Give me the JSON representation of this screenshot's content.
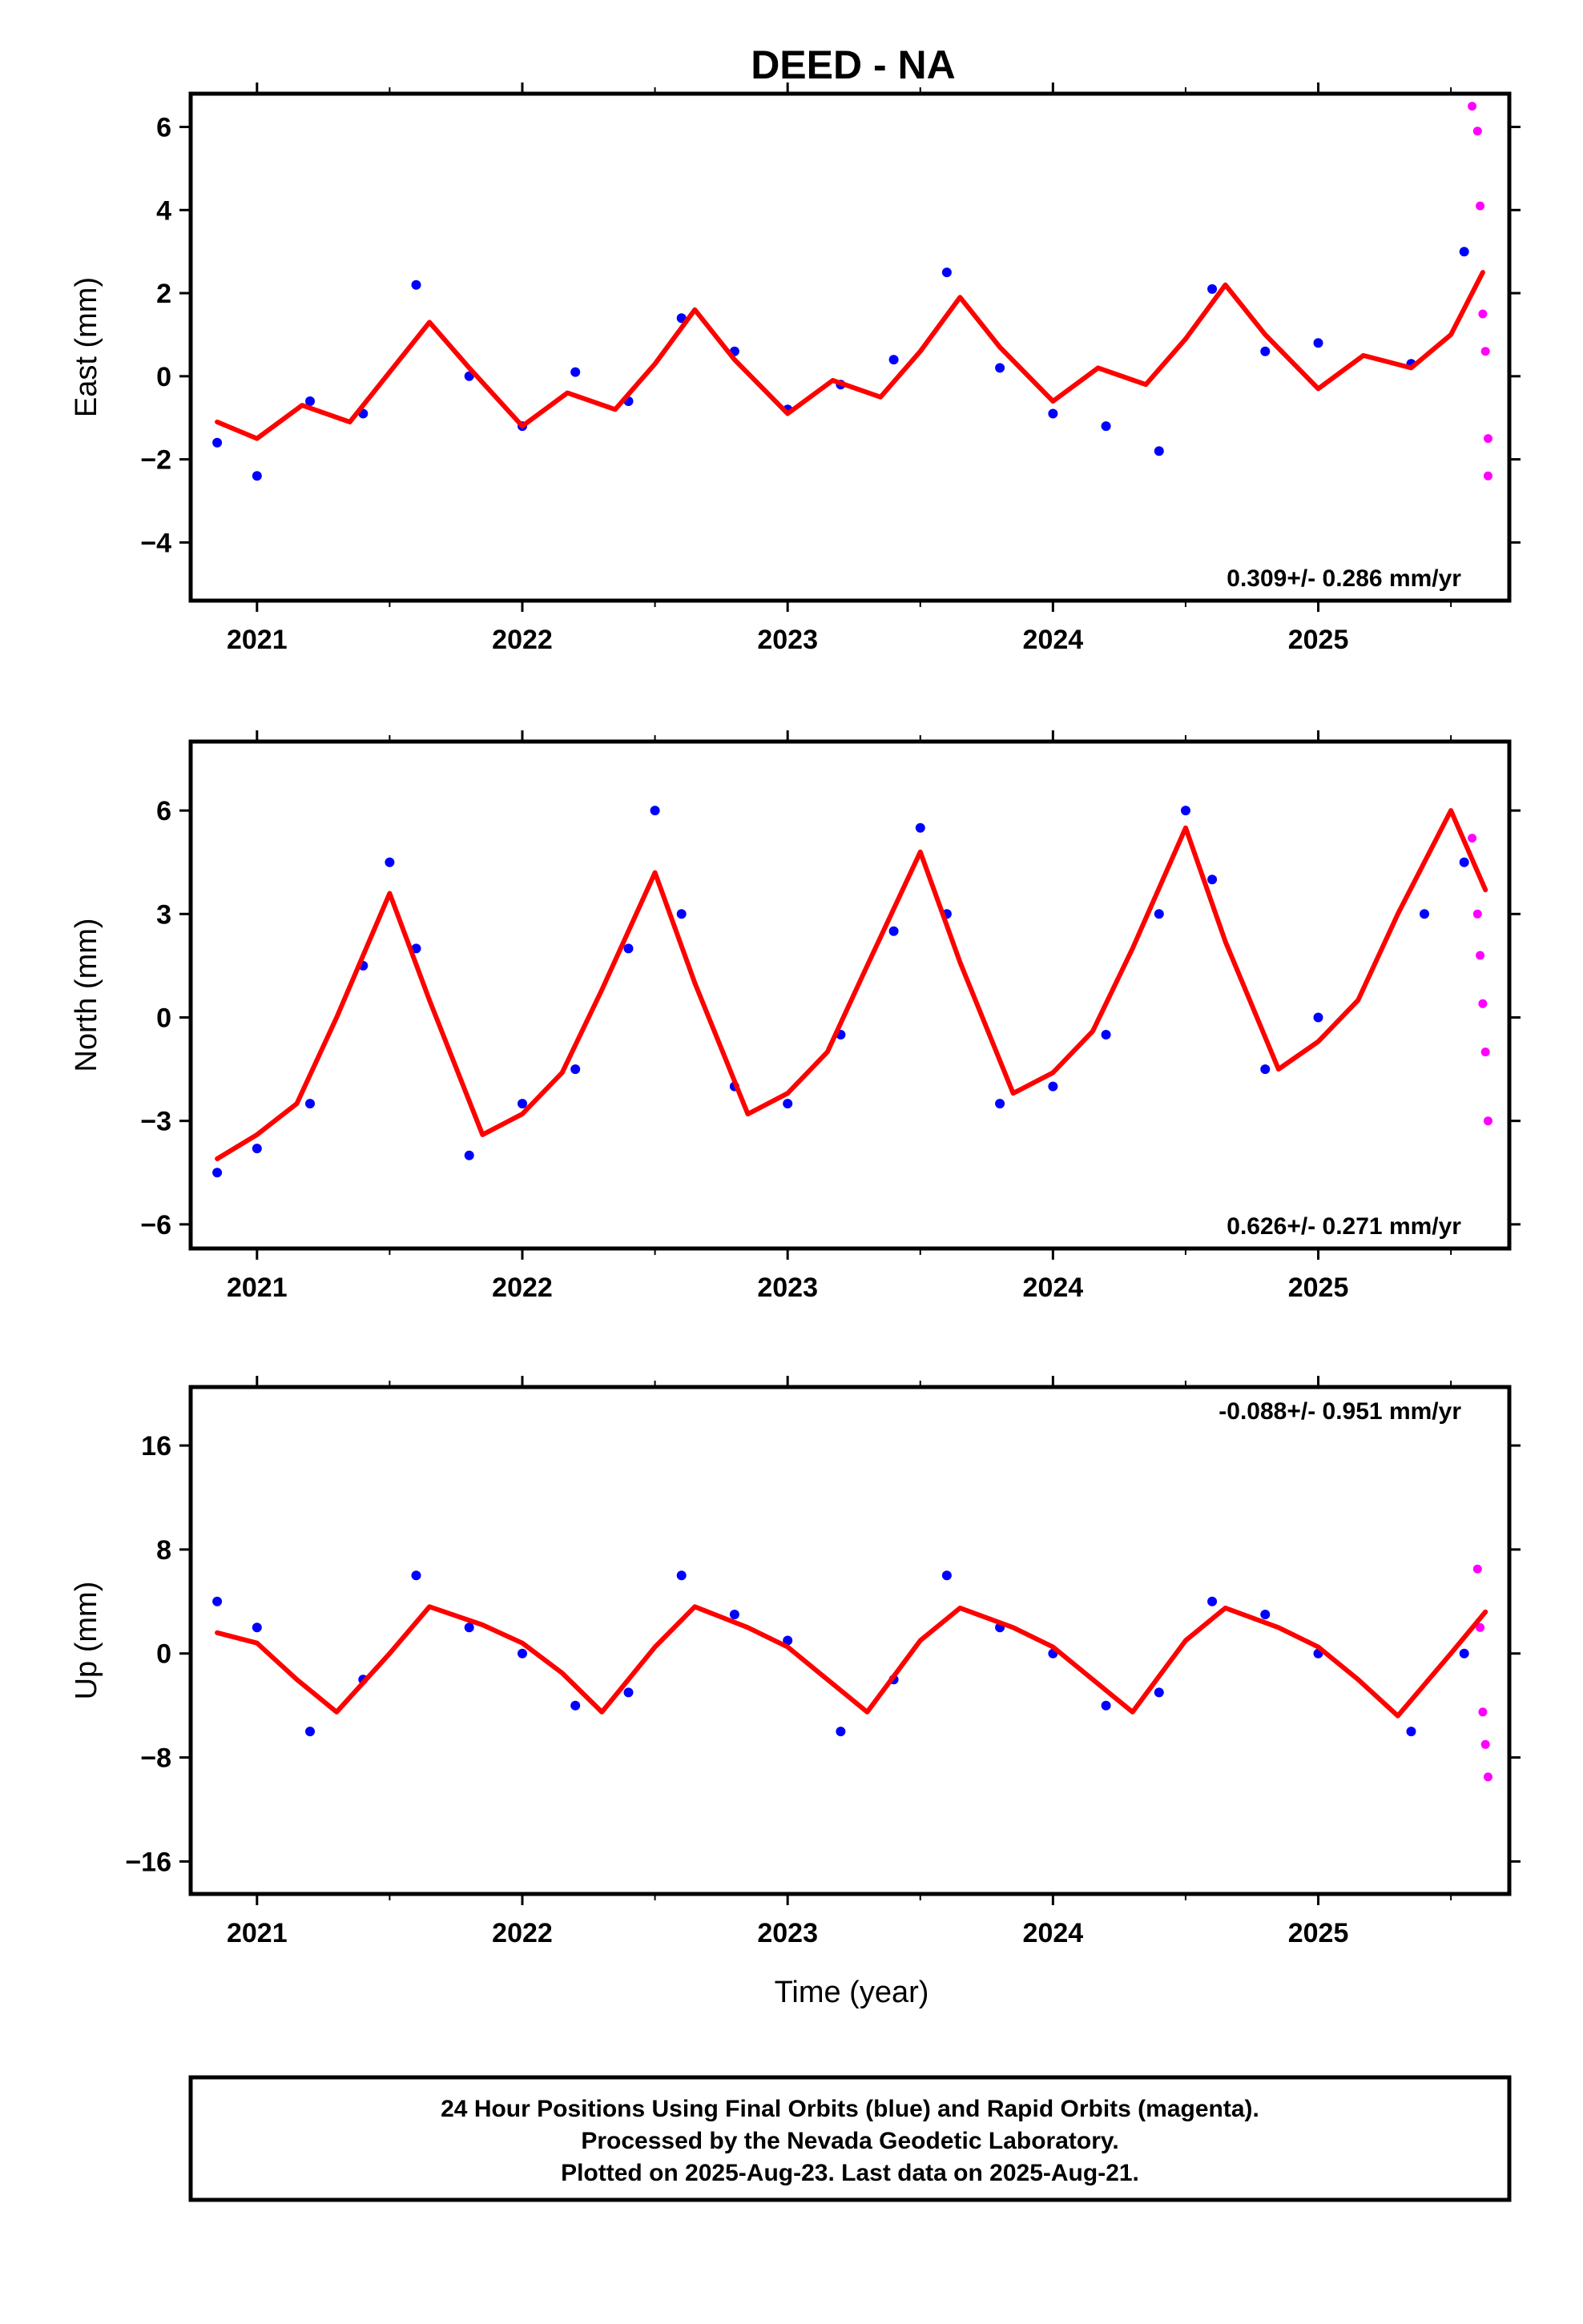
{
  "title": "DEED - NA",
  "xlabel": "Time (year)",
  "footer": {
    "line1": "24 Hour Positions Using Final Orbits (blue) and Rapid Orbits (magenta).",
    "line2": "Processed by the Nevada Geodetic Laboratory.",
    "line3": "Plotted on 2025-Aug-23. Last data on 2025-Aug-21."
  },
  "colors": {
    "final": "#0000ff",
    "rapid": "#ff00ff",
    "model": "#ff0000",
    "frame": "#000000"
  },
  "chart_data": [
    {
      "type": "scatter",
      "ylabel": "East (mm)",
      "rate": "0.309+/- 0.286 mm/yr",
      "xlim": [
        2020.75,
        2025.72
      ],
      "ylim": [
        -5.4,
        6.8
      ],
      "xticks": [
        2021,
        2022,
        2023,
        2024,
        2025
      ],
      "yticks": [
        -4,
        -2,
        0,
        2,
        4,
        6
      ],
      "grid": false,
      "series": [
        {
          "role": "final",
          "x": [
            2020.85,
            2021.0,
            2021.2,
            2021.4,
            2021.6,
            2021.8,
            2022.0,
            2022.2,
            2022.4,
            2022.6,
            2022.8,
            2023.0,
            2023.2,
            2023.4,
            2023.6,
            2023.8,
            2024.0,
            2024.2,
            2024.4,
            2024.6,
            2024.8,
            2025.0,
            2025.35,
            2025.55
          ],
          "y": [
            -1.6,
            -2.4,
            -0.6,
            -0.9,
            2.2,
            0.0,
            -1.2,
            0.1,
            -0.6,
            1.4,
            0.6,
            -0.8,
            -0.2,
            0.4,
            2.5,
            0.2,
            -0.9,
            -1.2,
            -1.8,
            2.1,
            0.6,
            0.8,
            0.3,
            3.0
          ]
        },
        {
          "role": "rapid",
          "x": [
            2025.58,
            2025.6,
            2025.61,
            2025.62,
            2025.63,
            2025.64,
            2025.64
          ],
          "y": [
            6.5,
            5.9,
            4.1,
            1.5,
            0.6,
            -1.5,
            -2.4
          ]
        },
        {
          "role": "model",
          "x": [
            2020.85,
            2021.0,
            2021.17,
            2021.35,
            2021.5,
            2021.65,
            2021.8,
            2022.0,
            2022.17,
            2022.35,
            2022.5,
            2022.65,
            2022.8,
            2023.0,
            2023.17,
            2023.35,
            2023.5,
            2023.65,
            2023.8,
            2024.0,
            2024.17,
            2024.35,
            2024.5,
            2024.65,
            2024.8,
            2025.0,
            2025.17,
            2025.35,
            2025.5,
            2025.62
          ],
          "y": [
            -1.1,
            -1.5,
            -0.7,
            -1.1,
            0.1,
            1.3,
            0.2,
            -1.2,
            -0.4,
            -0.8,
            0.3,
            1.6,
            0.4,
            -0.9,
            -0.1,
            -0.5,
            0.6,
            1.9,
            0.7,
            -0.6,
            0.2,
            -0.2,
            0.9,
            2.2,
            1.0,
            -0.3,
            0.5,
            0.2,
            1.0,
            2.5
          ]
        }
      ]
    },
    {
      "type": "scatter",
      "ylabel": "North (mm)",
      "rate": "0.626+/- 0.271 mm/yr",
      "xlim": [
        2020.75,
        2025.72
      ],
      "ylim": [
        -6.7,
        8.0
      ],
      "xticks": [
        2021,
        2022,
        2023,
        2024,
        2025
      ],
      "yticks": [
        -6,
        -3,
        0,
        3,
        6
      ],
      "grid": false,
      "series": [
        {
          "role": "final",
          "x": [
            2020.85,
            2021.0,
            2021.2,
            2021.4,
            2021.5,
            2021.6,
            2021.8,
            2022.0,
            2022.2,
            2022.4,
            2022.5,
            2022.6,
            2022.8,
            2023.0,
            2023.2,
            2023.4,
            2023.5,
            2023.6,
            2023.8,
            2024.0,
            2024.2,
            2024.4,
            2024.5,
            2024.6,
            2024.8,
            2025.0,
            2025.4,
            2025.55
          ],
          "y": [
            -4.5,
            -3.8,
            -2.5,
            1.5,
            4.5,
            2.0,
            -4.0,
            -2.5,
            -1.5,
            2.0,
            6.0,
            3.0,
            -2.0,
            -2.5,
            -0.5,
            2.5,
            5.5,
            3.0,
            -2.5,
            -2.0,
            -0.5,
            3.0,
            6.0,
            4.0,
            -1.5,
            0.0,
            3.0,
            4.5
          ]
        },
        {
          "role": "rapid",
          "x": [
            2025.58,
            2025.6,
            2025.61,
            2025.62,
            2025.63,
            2025.64
          ],
          "y": [
            5.2,
            3.0,
            1.8,
            0.4,
            -1.0,
            -3.0
          ]
        },
        {
          "role": "model",
          "x": [
            2020.85,
            2021.0,
            2021.15,
            2021.3,
            2021.5,
            2021.65,
            2021.85,
            2022.0,
            2022.15,
            2022.3,
            2022.5,
            2022.65,
            2022.85,
            2023.0,
            2023.15,
            2023.3,
            2023.5,
            2023.65,
            2023.85,
            2024.0,
            2024.15,
            2024.3,
            2024.5,
            2024.65,
            2024.85,
            2025.0,
            2025.15,
            2025.3,
            2025.5,
            2025.63
          ],
          "y": [
            -4.1,
            -3.4,
            -2.5,
            0.0,
            3.6,
            0.5,
            -3.4,
            -2.8,
            -1.6,
            0.8,
            4.2,
            1.0,
            -2.8,
            -2.2,
            -1.0,
            1.5,
            4.8,
            1.6,
            -2.2,
            -1.6,
            -0.4,
            2.0,
            5.5,
            2.2,
            -1.5,
            -0.7,
            0.5,
            3.0,
            6.0,
            3.7
          ]
        }
      ]
    },
    {
      "type": "scatter",
      "ylabel": "Up (mm)",
      "rate": "-0.088+/- 0.951 mm/yr",
      "xlim": [
        2020.75,
        2025.72
      ],
      "ylim": [
        -18.5,
        20.5
      ],
      "xticks": [
        2021,
        2022,
        2023,
        2024,
        2025
      ],
      "yticks": [
        -16,
        -8,
        0,
        8,
        16
      ],
      "grid": false,
      "series": [
        {
          "role": "final",
          "x": [
            2020.85,
            2021.0,
            2021.2,
            2021.4,
            2021.6,
            2021.8,
            2022.0,
            2022.2,
            2022.4,
            2022.6,
            2022.8,
            2023.0,
            2023.2,
            2023.4,
            2023.6,
            2023.8,
            2024.0,
            2024.2,
            2024.4,
            2024.6,
            2024.8,
            2025.0,
            2025.35,
            2025.55
          ],
          "y": [
            4.0,
            2.0,
            -6.0,
            -2.0,
            6.0,
            2.0,
            0.0,
            -4.0,
            -3.0,
            6.0,
            3.0,
            1.0,
            -6.0,
            -2.0,
            6.0,
            2.0,
            0.0,
            -4.0,
            -3.0,
            4.0,
            3.0,
            0.0,
            -6.0,
            0.0
          ]
        },
        {
          "role": "rapid",
          "x": [
            2025.6,
            2025.61,
            2025.62,
            2025.63,
            2025.64
          ],
          "y": [
            6.5,
            2.0,
            -4.5,
            -7.0,
            -9.5
          ]
        },
        {
          "role": "model",
          "x": [
            2020.85,
            2021.0,
            2021.15,
            2021.3,
            2021.5,
            2021.65,
            2021.85,
            2022.0,
            2022.15,
            2022.3,
            2022.5,
            2022.65,
            2022.85,
            2023.0,
            2023.15,
            2023.3,
            2023.5,
            2023.65,
            2023.85,
            2024.0,
            2024.15,
            2024.3,
            2024.5,
            2024.65,
            2024.85,
            2025.0,
            2025.15,
            2025.3,
            2025.5,
            2025.63
          ],
          "y": [
            1.6,
            0.8,
            -2.0,
            -4.5,
            0.0,
            3.6,
            2.2,
            0.8,
            -1.5,
            -4.5,
            0.5,
            3.6,
            2.0,
            0.5,
            -2.0,
            -4.5,
            1.0,
            3.5,
            2.0,
            0.5,
            -2.0,
            -4.5,
            1.0,
            3.5,
            2.0,
            0.5,
            -2.0,
            -4.8,
            0.0,
            3.2
          ]
        }
      ]
    }
  ]
}
